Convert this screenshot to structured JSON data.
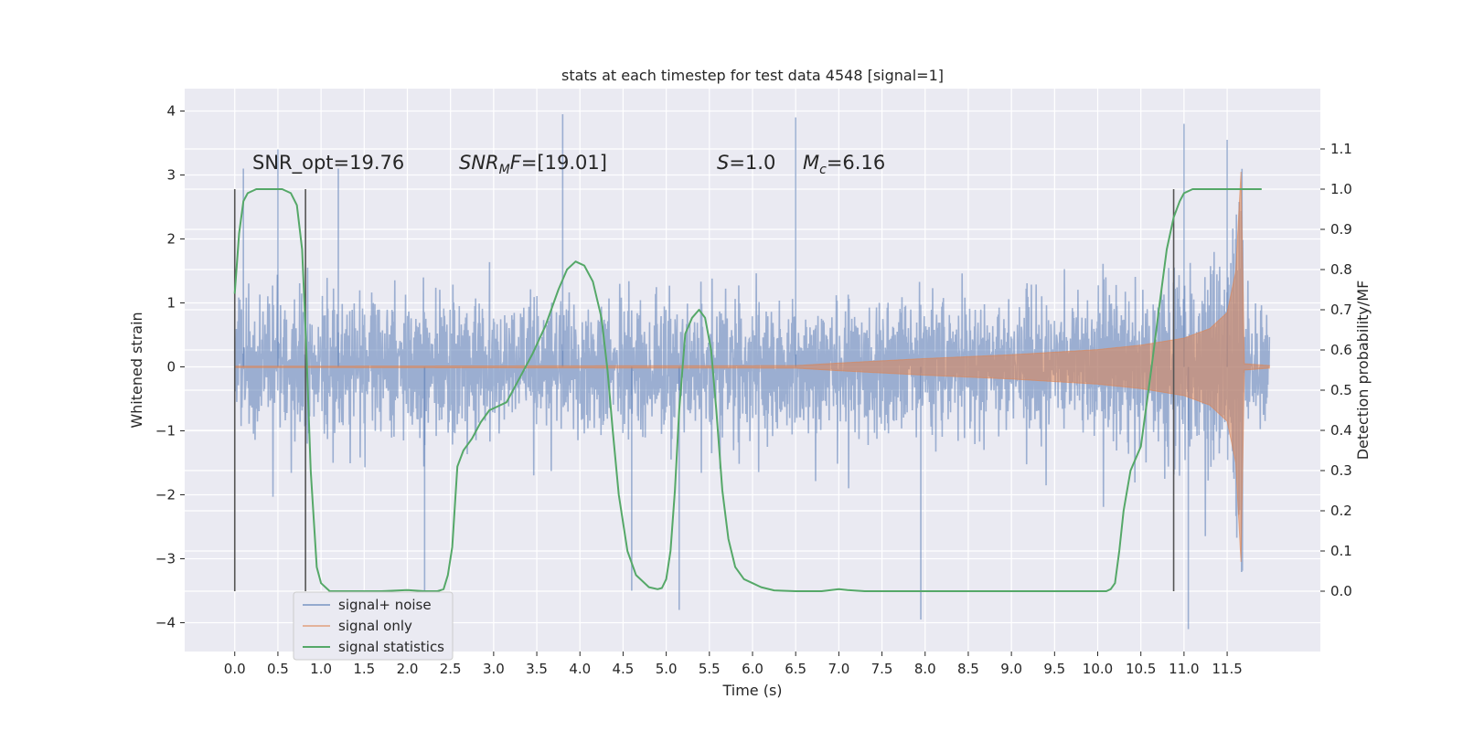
{
  "chart_data": {
    "type": "line",
    "title": "stats at each timestep for test data 4548 [signal=1]",
    "xlabel": "Time (s)",
    "ylabel": "Whitened strain",
    "y2label": "Detection probability/MF",
    "xlim": [
      -0.58,
      12.58
    ],
    "ylim": [
      -4.45,
      4.35
    ],
    "y2lim": [
      -0.15,
      1.25
    ],
    "xticks": [
      0.0,
      0.5,
      1.0,
      1.5,
      2.0,
      2.5,
      3.0,
      3.5,
      4.0,
      4.5,
      5.0,
      5.5,
      6.0,
      6.5,
      7.0,
      7.5,
      8.0,
      8.5,
      9.0,
      9.5,
      10.0,
      10.5,
      11.0,
      11.5
    ],
    "xtick_labels": [
      "0.0",
      "0.5",
      "1.0",
      "1.5",
      "2.0",
      "2.5",
      "3.0",
      "3.5",
      "4.0",
      "4.5",
      "5.0",
      "5.5",
      "6.0",
      "6.5",
      "7.0",
      "7.5",
      "8.0",
      "8.5",
      "9.0",
      "9.5",
      "10.0",
      "10.5",
      "11.0",
      "11.5"
    ],
    "yticks": [
      -4,
      -3,
      -2,
      -1,
      0,
      1,
      2,
      3,
      4
    ],
    "ytick_labels": [
      "−4",
      "−3",
      "−2",
      "−1",
      "0",
      "1",
      "2",
      "3",
      "4"
    ],
    "y2ticks": [
      0.0,
      0.1,
      0.2,
      0.3,
      0.4,
      0.5,
      0.6,
      0.7,
      0.8,
      0.9,
      1.0,
      1.1
    ],
    "y2tick_labels": [
      "0.0",
      "0.1",
      "0.2",
      "0.3",
      "0.4",
      "0.5",
      "0.6",
      "0.7",
      "0.8",
      "0.9",
      "1.0",
      "1.1"
    ],
    "grid": true,
    "legend_position": "bottom-left",
    "series": [
      {
        "name": "signal+ noise",
        "axis": "left",
        "color": "#4c72b0",
        "style": "dense noise trace",
        "x_range": [
          0.0,
          11.99
        ],
        "envelope_peaks": [
          [
            0.1,
            3.1
          ],
          [
            0.5,
            3.4
          ],
          [
            1.2,
            3.1
          ],
          [
            3.8,
            3.95
          ],
          [
            6.5,
            3.9
          ],
          [
            11.0,
            3.8
          ],
          [
            11.5,
            3.55
          ],
          [
            2.2,
            -3.5
          ],
          [
            4.6,
            -3.5
          ],
          [
            5.15,
            -3.8
          ],
          [
            7.95,
            -3.95
          ],
          [
            11.05,
            -4.1
          ]
        ]
      },
      {
        "name": "signal only",
        "axis": "left",
        "color": "#dd8452",
        "style": "chirp envelope",
        "envelope": {
          "x": [
            0.0,
            6.5,
            7.0,
            8.0,
            9.0,
            10.0,
            10.5,
            11.0,
            11.3,
            11.5,
            11.6,
            11.66,
            11.7,
            11.99
          ],
          "amp": [
            0.01,
            0.02,
            0.06,
            0.13,
            0.19,
            0.27,
            0.34,
            0.45,
            0.6,
            0.85,
            1.5,
            3.05,
            0.05,
            0.02
          ]
        }
      },
      {
        "name": "signal statistics",
        "axis": "right",
        "color": "#55a868",
        "x": [
          0.0,
          0.05,
          0.1,
          0.15,
          0.25,
          0.4,
          0.55,
          0.65,
          0.72,
          0.78,
          0.83,
          0.88,
          0.95,
          1.0,
          1.1,
          1.4,
          1.7,
          2.0,
          2.2,
          2.35,
          2.42,
          2.47,
          2.52,
          2.58,
          2.65,
          2.75,
          2.85,
          2.95,
          3.05,
          3.15,
          3.3,
          3.45,
          3.6,
          3.75,
          3.85,
          3.95,
          4.05,
          4.15,
          4.25,
          4.32,
          4.38,
          4.45,
          4.55,
          4.65,
          4.8,
          4.9,
          4.95,
          5.0,
          5.05,
          5.1,
          5.15,
          5.22,
          5.3,
          5.38,
          5.45,
          5.52,
          5.58,
          5.65,
          5.72,
          5.8,
          5.9,
          6.0,
          6.1,
          6.25,
          6.5,
          6.8,
          7.0,
          7.1,
          7.3,
          7.6,
          8.0,
          9.0,
          10.0,
          10.1,
          10.15,
          10.2,
          10.25,
          10.3,
          10.38,
          10.5,
          10.62,
          10.72,
          10.8,
          10.88,
          10.95,
          11.0,
          11.1,
          11.3,
          11.6,
          11.9
        ],
        "y": [
          0.74,
          0.89,
          0.97,
          0.99,
          1.0,
          1.0,
          1.0,
          0.99,
          0.96,
          0.85,
          0.6,
          0.3,
          0.06,
          0.02,
          0.0,
          0.0,
          0.0,
          0.003,
          0.0,
          0.0,
          0.005,
          0.04,
          0.11,
          0.31,
          0.35,
          0.38,
          0.42,
          0.45,
          0.46,
          0.47,
          0.53,
          0.59,
          0.66,
          0.75,
          0.8,
          0.82,
          0.81,
          0.77,
          0.68,
          0.55,
          0.4,
          0.24,
          0.1,
          0.04,
          0.01,
          0.005,
          0.008,
          0.03,
          0.1,
          0.25,
          0.45,
          0.64,
          0.68,
          0.7,
          0.68,
          0.6,
          0.45,
          0.25,
          0.13,
          0.06,
          0.03,
          0.02,
          0.01,
          0.002,
          0.0,
          0.0,
          0.005,
          0.003,
          0.0,
          0.0,
          0.0,
          0.0,
          0.0,
          0.0,
          0.005,
          0.02,
          0.1,
          0.2,
          0.3,
          0.36,
          0.55,
          0.72,
          0.85,
          0.93,
          0.97,
          0.99,
          1.0,
          1.0,
          1.0,
          1.0
        ]
      }
    ],
    "vlines": [
      0.0,
      0.82,
      10.88
    ],
    "annotations": [
      {
        "x": 0.22,
        "y": 3.0,
        "text": "SNR_opt=19.76"
      },
      {
        "x": 2.6,
        "y": 3.0,
        "text": "SNR_MF=[19.01]"
      },
      {
        "x": 5.6,
        "y": 3.0,
        "text": "S=1.0"
      },
      {
        "x": 6.6,
        "y": 3.0,
        "text": "M_c=6.16"
      }
    ],
    "colors": {
      "noise": "#4c72b0",
      "signal": "#dd8452",
      "stat": "#55a868",
      "vline": "#555555",
      "plot_bg": "#eaeaf2",
      "grid": "#ffffff"
    }
  }
}
